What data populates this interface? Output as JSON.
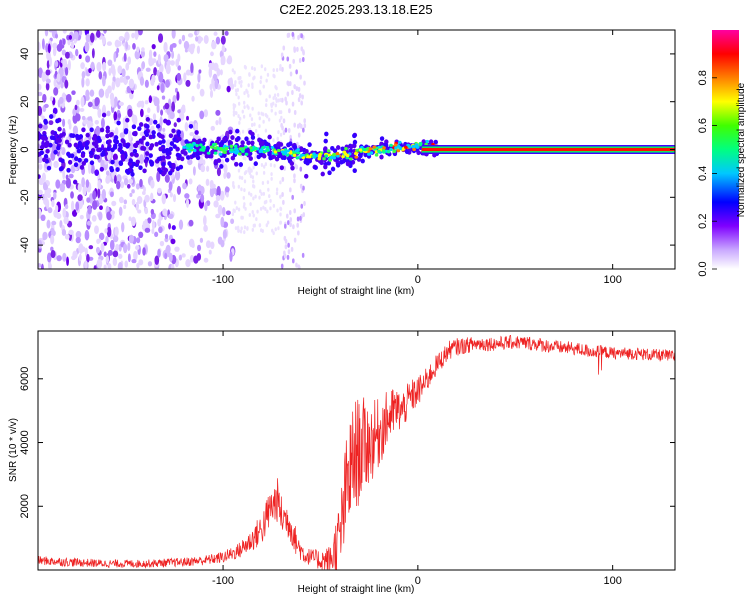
{
  "figure": {
    "title": "C2E2.2025.293.13.18.E25"
  },
  "chart_data": [
    {
      "type": "heatmap",
      "name": "spectrogram",
      "xlabel": "Height of straight line (km)",
      "ylabel": "Frequency (Hz)",
      "xlim": [
        -195,
        132
      ],
      "ylim": [
        -50,
        50
      ],
      "x_ticks": [
        -100,
        0,
        100
      ],
      "y_ticks": [
        -40,
        -20,
        0,
        20,
        40
      ],
      "colorbar": {
        "label": "Normalized spectral amplitude",
        "range": [
          0,
          1
        ],
        "ticks": [
          0.0,
          0.2,
          0.4,
          0.6,
          0.8
        ],
        "tick_labels": [
          "0.0",
          "0.2",
          "0.4",
          "0.6",
          "0.8"
        ],
        "colormap": [
          "#ffffff",
          "#7f00ff",
          "#0000ff",
          "#00ffff",
          "#00ff00",
          "#ffff00",
          "#ff8000",
          "#ff0000",
          "#ff00ff"
        ]
      },
      "features": [
        {
          "description": "scattered broadband noise",
          "x_range": [
            -195,
            -95
          ],
          "y_range": [
            -50,
            50
          ],
          "amplitude": 0.15
        },
        {
          "description": "faint noise band",
          "x_range": [
            -70,
            -58
          ],
          "y_range": [
            -50,
            50
          ],
          "amplitude": 0.08
        },
        {
          "description": "carrier line",
          "x": [
            -120,
            -100,
            -80,
            -60,
            -50,
            -40,
            -30,
            -20,
            -10,
            0,
            20,
            60,
            100,
            132
          ],
          "y": [
            1,
            0,
            0,
            -2,
            -3,
            -2,
            -1,
            0,
            1,
            1,
            0,
            0,
            0,
            0
          ],
          "amplitude": 0.9
        }
      ]
    },
    {
      "type": "line",
      "name": "snr",
      "xlabel": "Height of straight line (km)",
      "ylabel": "SNR (10 * v/v)",
      "xlim": [
        -195,
        132
      ],
      "ylim": [
        0,
        7500
      ],
      "x_ticks": [
        -100,
        0,
        100
      ],
      "y_ticks": [
        2000,
        4000,
        6000
      ],
      "color": "#ee2222",
      "x": [
        -195,
        -180,
        -160,
        -140,
        -120,
        -110,
        -100,
        -92,
        -86,
        -80,
        -76,
        -72,
        -70,
        -66,
        -62,
        -58,
        -54,
        -50,
        -45,
        -40,
        -36,
        -32,
        -28,
        -24,
        -20,
        -16,
        -12,
        -8,
        -4,
        0,
        4,
        8,
        12,
        16,
        20,
        25,
        30,
        40,
        50,
        60,
        70,
        80,
        85,
        90,
        95,
        100,
        110,
        120,
        132
      ],
      "y": [
        300,
        250,
        200,
        200,
        250,
        300,
        400,
        600,
        900,
        1300,
        1900,
        2200,
        1700,
        1500,
        800,
        450,
        400,
        300,
        300,
        1000,
        2800,
        3600,
        3900,
        4000,
        4300,
        4700,
        5000,
        5000,
        5400,
        5600,
        5900,
        6300,
        6600,
        6900,
        7000,
        7050,
        7100,
        7100,
        7150,
        7100,
        7000,
        6950,
        6900,
        6850,
        6850,
        6800,
        6800,
        6750,
        6700
      ],
      "noise": [
        100,
        100,
        90,
        90,
        100,
        110,
        130,
        180,
        250,
        380,
        450,
        500,
        450,
        400,
        300,
        200,
        180,
        250,
        350,
        900,
        1300,
        1300,
        1100,
        900,
        800,
        650,
        550,
        450,
        400,
        350,
        300,
        250,
        230,
        210,
        200,
        180,
        170,
        160,
        160,
        160,
        150,
        150,
        150,
        150,
        140,
        140,
        140,
        140,
        140
      ]
    }
  ]
}
